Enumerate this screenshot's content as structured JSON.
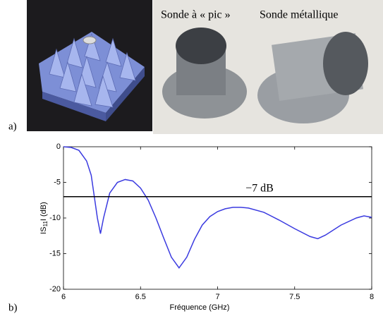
{
  "figure": {
    "panel_labels": [
      "a)",
      "b)"
    ],
    "photo_labels": [
      "Sonde à « pic »",
      "Sonde métallique"
    ]
  },
  "chart_data": {
    "type": "line",
    "x_label": "Fréquence (GHz)",
    "y_label": {
      "prefix": "IS",
      "sub": "11",
      "suffix": "I (dB)"
    },
    "x": [
      6.0,
      6.05,
      6.1,
      6.15,
      6.18,
      6.2,
      6.22,
      6.24,
      6.26,
      6.3,
      6.35,
      6.4,
      6.45,
      6.5,
      6.55,
      6.6,
      6.65,
      6.7,
      6.75,
      6.8,
      6.85,
      6.9,
      6.95,
      7.0,
      7.05,
      7.1,
      7.15,
      7.2,
      7.3,
      7.4,
      7.5,
      7.6,
      7.65,
      7.7,
      7.8,
      7.9,
      7.95,
      8.0
    ],
    "series": [
      {
        "color": "#3a3ae0",
        "values": [
          0,
          -0.1,
          -0.5,
          -2,
          -4,
          -7,
          -10,
          -12.2,
          -10,
          -6.5,
          -5,
          -4.6,
          -4.8,
          -5.8,
          -7.5,
          -10,
          -12.8,
          -15.5,
          -17,
          -15.5,
          -13,
          -11,
          -9.8,
          -9.1,
          -8.7,
          -8.5,
          -8.5,
          -8.6,
          -9.2,
          -10.3,
          -11.5,
          -12.6,
          -12.9,
          -12.4,
          -11,
          -10,
          -9.7,
          -9.9
        ]
      }
    ],
    "hline": {
      "value": -7,
      "label": "−7 dB",
      "color": "#000000"
    },
    "xlim": [
      6,
      8
    ],
    "xticks": [
      6,
      6.5,
      7,
      7.5,
      8
    ],
    "ylim": [
      -20,
      0
    ],
    "yticks": [
      0,
      -5,
      -10,
      -15,
      -20
    ],
    "grid": false
  }
}
